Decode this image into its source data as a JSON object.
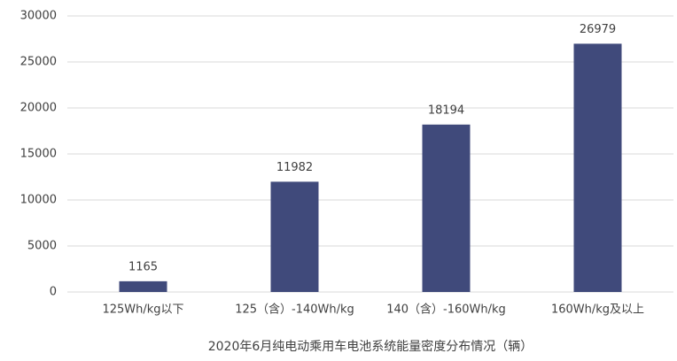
{
  "chart_data": {
    "type": "bar",
    "title": "2020年6月纯电动乘用车电池系统能量密度分布情况（辆）",
    "categories": [
      "125Wh/kg以下",
      "125（含）-140Wh/kg",
      "140（含）-160Wh/kg",
      "160Wh/kg及以上"
    ],
    "values": [
      1165,
      11982,
      18194,
      26979
    ],
    "color": "#404a7b",
    "ylim": [
      0,
      30000
    ],
    "yticks": [
      0,
      5000,
      10000,
      15000,
      20000,
      25000,
      30000
    ],
    "grid": true
  }
}
